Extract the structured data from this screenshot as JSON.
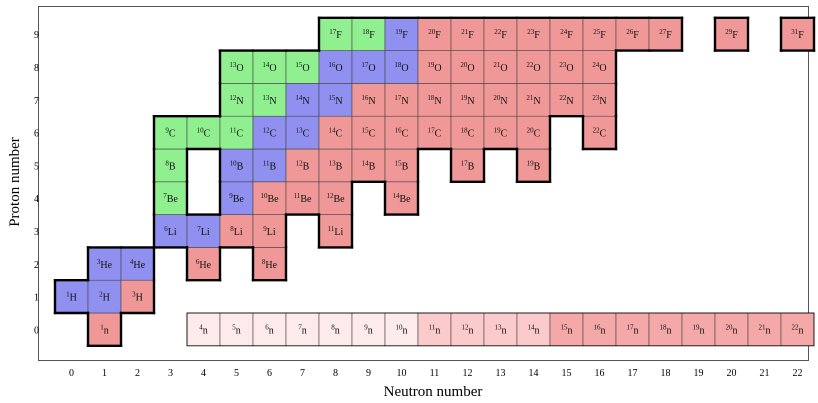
{
  "chart_data": {
    "type": "heatmap",
    "title": "",
    "xlabel": "Neutron number",
    "ylabel": "Proton number",
    "xlim": [
      -0.5,
      22.5
    ],
    "ylim": [
      -0.5,
      9.5
    ],
    "x_ticks": [
      0,
      1,
      2,
      3,
      4,
      5,
      6,
      7,
      8,
      9,
      10,
      11,
      12,
      13,
      14,
      15,
      16,
      17,
      18,
      19,
      20,
      21,
      22
    ],
    "y_ticks": [
      0,
      1,
      2,
      3,
      4,
      5,
      6,
      7,
      8,
      9
    ],
    "grid": false,
    "legend": "none",
    "colors": {
      "stable": "#90f090",
      "blue": "#9090f0",
      "red": "#f09898",
      "neutron_light": "#fdeaea",
      "neutron_mid": "#fbcbcb",
      "neutron_dark": "#f4a8a8",
      "border": "#000000",
      "frame": "#555555"
    },
    "nuclides": [
      {
        "n": 1,
        "z": 0,
        "mass": "1",
        "sym": "n",
        "cat": "red"
      },
      {
        "n": 4,
        "z": 0,
        "mass": "4",
        "sym": "n",
        "cat": "neutron_light"
      },
      {
        "n": 5,
        "z": 0,
        "mass": "5",
        "sym": "n",
        "cat": "neutron_light"
      },
      {
        "n": 6,
        "z": 0,
        "mass": "6",
        "sym": "n",
        "cat": "neutron_light"
      },
      {
        "n": 7,
        "z": 0,
        "mass": "7",
        "sym": "n",
        "cat": "neutron_light"
      },
      {
        "n": 8,
        "z": 0,
        "mass": "8",
        "sym": "n",
        "cat": "neutron_light"
      },
      {
        "n": 9,
        "z": 0,
        "mass": "9",
        "sym": "n",
        "cat": "neutron_light"
      },
      {
        "n": 10,
        "z": 0,
        "mass": "10",
        "sym": "n",
        "cat": "neutron_light"
      },
      {
        "n": 11,
        "z": 0,
        "mass": "11",
        "sym": "n",
        "cat": "neutron_mid"
      },
      {
        "n": 12,
        "z": 0,
        "mass": "12",
        "sym": "n",
        "cat": "neutron_mid"
      },
      {
        "n": 13,
        "z": 0,
        "mass": "13",
        "sym": "n",
        "cat": "neutron_mid"
      },
      {
        "n": 14,
        "z": 0,
        "mass": "14",
        "sym": "n",
        "cat": "neutron_mid"
      },
      {
        "n": 15,
        "z": 0,
        "mass": "15",
        "sym": "n",
        "cat": "neutron_dark"
      },
      {
        "n": 16,
        "z": 0,
        "mass": "16",
        "sym": "n",
        "cat": "neutron_dark"
      },
      {
        "n": 17,
        "z": 0,
        "mass": "17",
        "sym": "n",
        "cat": "neutron_dark"
      },
      {
        "n": 18,
        "z": 0,
        "mass": "18",
        "sym": "n",
        "cat": "neutron_dark"
      },
      {
        "n": 19,
        "z": 0,
        "mass": "19",
        "sym": "n",
        "cat": "neutron_dark"
      },
      {
        "n": 20,
        "z": 0,
        "mass": "20",
        "sym": "n",
        "cat": "neutron_dark"
      },
      {
        "n": 21,
        "z": 0,
        "mass": "21",
        "sym": "n",
        "cat": "neutron_dark"
      },
      {
        "n": 22,
        "z": 0,
        "mass": "22",
        "sym": "n",
        "cat": "neutron_dark"
      },
      {
        "n": 0,
        "z": 1,
        "mass": "1",
        "sym": "H",
        "cat": "blue"
      },
      {
        "n": 1,
        "z": 1,
        "mass": "2",
        "sym": "H",
        "cat": "blue"
      },
      {
        "n": 2,
        "z": 1,
        "mass": "3",
        "sym": "H",
        "cat": "red"
      },
      {
        "n": 1,
        "z": 2,
        "mass": "3",
        "sym": "He",
        "cat": "blue"
      },
      {
        "n": 2,
        "z": 2,
        "mass": "4",
        "sym": "He",
        "cat": "blue"
      },
      {
        "n": 4,
        "z": 2,
        "mass": "6",
        "sym": "He",
        "cat": "red"
      },
      {
        "n": 6,
        "z": 2,
        "mass": "8",
        "sym": "He",
        "cat": "red"
      },
      {
        "n": 3,
        "z": 3,
        "mass": "6",
        "sym": "Li",
        "cat": "blue"
      },
      {
        "n": 4,
        "z": 3,
        "mass": "7",
        "sym": "Li",
        "cat": "blue"
      },
      {
        "n": 5,
        "z": 3,
        "mass": "8",
        "sym": "Li",
        "cat": "red"
      },
      {
        "n": 6,
        "z": 3,
        "mass": "9",
        "sym": "Li",
        "cat": "red"
      },
      {
        "n": 8,
        "z": 3,
        "mass": "11",
        "sym": "Li",
        "cat": "red"
      },
      {
        "n": 3,
        "z": 4,
        "mass": "7",
        "sym": "Be",
        "cat": "stable"
      },
      {
        "n": 5,
        "z": 4,
        "mass": "9",
        "sym": "Be",
        "cat": "blue"
      },
      {
        "n": 6,
        "z": 4,
        "mass": "10",
        "sym": "Be",
        "cat": "red"
      },
      {
        "n": 7,
        "z": 4,
        "mass": "11",
        "sym": "Be",
        "cat": "red"
      },
      {
        "n": 8,
        "z": 4,
        "mass": "12",
        "sym": "Be",
        "cat": "red"
      },
      {
        "n": 10,
        "z": 4,
        "mass": "14",
        "sym": "Be",
        "cat": "red"
      },
      {
        "n": 3,
        "z": 5,
        "mass": "8",
        "sym": "B",
        "cat": "stable"
      },
      {
        "n": 5,
        "z": 5,
        "mass": "10",
        "sym": "B",
        "cat": "blue"
      },
      {
        "n": 6,
        "z": 5,
        "mass": "11",
        "sym": "B",
        "cat": "blue"
      },
      {
        "n": 7,
        "z": 5,
        "mass": "12",
        "sym": "B",
        "cat": "red"
      },
      {
        "n": 8,
        "z": 5,
        "mass": "13",
        "sym": "B",
        "cat": "red"
      },
      {
        "n": 9,
        "z": 5,
        "mass": "14",
        "sym": "B",
        "cat": "red"
      },
      {
        "n": 10,
        "z": 5,
        "mass": "15",
        "sym": "B",
        "cat": "red"
      },
      {
        "n": 12,
        "z": 5,
        "mass": "17",
        "sym": "B",
        "cat": "red"
      },
      {
        "n": 14,
        "z": 5,
        "mass": "19",
        "sym": "B",
        "cat": "red"
      },
      {
        "n": 3,
        "z": 6,
        "mass": "9",
        "sym": "C",
        "cat": "stable"
      },
      {
        "n": 4,
        "z": 6,
        "mass": "10",
        "sym": "C",
        "cat": "stable"
      },
      {
        "n": 5,
        "z": 6,
        "mass": "11",
        "sym": "C",
        "cat": "stable"
      },
      {
        "n": 6,
        "z": 6,
        "mass": "12",
        "sym": "C",
        "cat": "blue"
      },
      {
        "n": 7,
        "z": 6,
        "mass": "13",
        "sym": "C",
        "cat": "blue"
      },
      {
        "n": 8,
        "z": 6,
        "mass": "14",
        "sym": "C",
        "cat": "red"
      },
      {
        "n": 9,
        "z": 6,
        "mass": "15",
        "sym": "C",
        "cat": "red"
      },
      {
        "n": 10,
        "z": 6,
        "mass": "16",
        "sym": "C",
        "cat": "red"
      },
      {
        "n": 11,
        "z": 6,
        "mass": "17",
        "sym": "C",
        "cat": "red"
      },
      {
        "n": 12,
        "z": 6,
        "mass": "18",
        "sym": "C",
        "cat": "red"
      },
      {
        "n": 13,
        "z": 6,
        "mass": "19",
        "sym": "C",
        "cat": "red"
      },
      {
        "n": 14,
        "z": 6,
        "mass": "20",
        "sym": "C",
        "cat": "red"
      },
      {
        "n": 16,
        "z": 6,
        "mass": "22",
        "sym": "C",
        "cat": "red"
      },
      {
        "n": 5,
        "z": 7,
        "mass": "12",
        "sym": "N",
        "cat": "stable"
      },
      {
        "n": 6,
        "z": 7,
        "mass": "13",
        "sym": "N",
        "cat": "stable"
      },
      {
        "n": 7,
        "z": 7,
        "mass": "14",
        "sym": "N",
        "cat": "blue"
      },
      {
        "n": 8,
        "z": 7,
        "mass": "15",
        "sym": "N",
        "cat": "blue"
      },
      {
        "n": 9,
        "z": 7,
        "mass": "16",
        "sym": "N",
        "cat": "red"
      },
      {
        "n": 10,
        "z": 7,
        "mass": "17",
        "sym": "N",
        "cat": "red"
      },
      {
        "n": 11,
        "z": 7,
        "mass": "18",
        "sym": "N",
        "cat": "red"
      },
      {
        "n": 12,
        "z": 7,
        "mass": "19",
        "sym": "N",
        "cat": "red"
      },
      {
        "n": 13,
        "z": 7,
        "mass": "20",
        "sym": "N",
        "cat": "red"
      },
      {
        "n": 14,
        "z": 7,
        "mass": "21",
        "sym": "N",
        "cat": "red"
      },
      {
        "n": 15,
        "z": 7,
        "mass": "22",
        "sym": "N",
        "cat": "red"
      },
      {
        "n": 16,
        "z": 7,
        "mass": "23",
        "sym": "N",
        "cat": "red"
      },
      {
        "n": 5,
        "z": 8,
        "mass": "13",
        "sym": "O",
        "cat": "stable"
      },
      {
        "n": 6,
        "z": 8,
        "mass": "14",
        "sym": "O",
        "cat": "stable"
      },
      {
        "n": 7,
        "z": 8,
        "mass": "15",
        "sym": "O",
        "cat": "stable"
      },
      {
        "n": 8,
        "z": 8,
        "mass": "16",
        "sym": "O",
        "cat": "blue"
      },
      {
        "n": 9,
        "z": 8,
        "mass": "17",
        "sym": "O",
        "cat": "blue"
      },
      {
        "n": 10,
        "z": 8,
        "mass": "18",
        "sym": "O",
        "cat": "blue"
      },
      {
        "n": 11,
        "z": 8,
        "mass": "19",
        "sym": "O",
        "cat": "red"
      },
      {
        "n": 12,
        "z": 8,
        "mass": "20",
        "sym": "O",
        "cat": "red"
      },
      {
        "n": 13,
        "z": 8,
        "mass": "21",
        "sym": "O",
        "cat": "red"
      },
      {
        "n": 14,
        "z": 8,
        "mass": "22",
        "sym": "O",
        "cat": "red"
      },
      {
        "n": 15,
        "z": 8,
        "mass": "23",
        "sym": "O",
        "cat": "red"
      },
      {
        "n": 16,
        "z": 8,
        "mass": "24",
        "sym": "O",
        "cat": "red"
      },
      {
        "n": 8,
        "z": 9,
        "mass": "17",
        "sym": "F",
        "cat": "stable"
      },
      {
        "n": 9,
        "z": 9,
        "mass": "18",
        "sym": "F",
        "cat": "stable"
      },
      {
        "n": 10,
        "z": 9,
        "mass": "19",
        "sym": "F",
        "cat": "blue"
      },
      {
        "n": 11,
        "z": 9,
        "mass": "20",
        "sym": "F",
        "cat": "red"
      },
      {
        "n": 12,
        "z": 9,
        "mass": "21",
        "sym": "F",
        "cat": "red"
      },
      {
        "n": 13,
        "z": 9,
        "mass": "22",
        "sym": "F",
        "cat": "red"
      },
      {
        "n": 14,
        "z": 9,
        "mass": "23",
        "sym": "F",
        "cat": "red"
      },
      {
        "n": 15,
        "z": 9,
        "mass": "24",
        "sym": "F",
        "cat": "red"
      },
      {
        "n": 16,
        "z": 9,
        "mass": "25",
        "sym": "F",
        "cat": "red"
      },
      {
        "n": 17,
        "z": 9,
        "mass": "26",
        "sym": "F",
        "cat": "red"
      },
      {
        "n": 18,
        "z": 9,
        "mass": "27",
        "sym": "F",
        "cat": "red"
      },
      {
        "n": 20,
        "z": 9,
        "mass": "29",
        "sym": "F",
        "cat": "red"
      },
      {
        "n": 22,
        "z": 9,
        "mass": "31",
        "sym": "F",
        "cat": "red"
      }
    ]
  }
}
